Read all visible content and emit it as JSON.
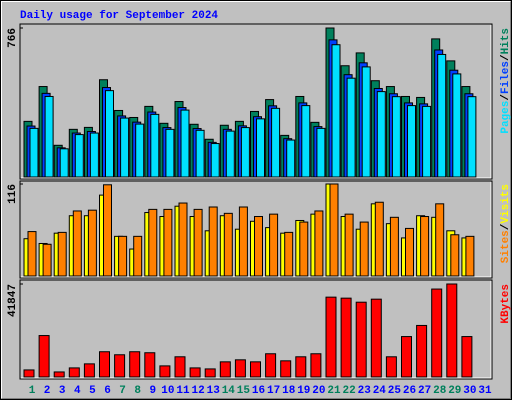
{
  "chart_data": [
    {
      "type": "bar",
      "title": "Daily usage for September 2024",
      "title_color": "#0000ff",
      "ylim": [
        0,
        766
      ],
      "yticks": [
        766
      ],
      "legend_separator": "/",
      "series": [
        {
          "name": "Hits",
          "color": "#00805c",
          "values": [
            286,
            465,
            163,
            245,
            255,
            500,
            342,
            306,
            363,
            276,
            388,
            271,
            194,
            266,
            286,
            337,
            398,
            214,
            414,
            281,
            766,
            572,
            638,
            495,
            465,
            414,
            409,
            710,
            597,
            465,
            null
          ]
        },
        {
          "name": "Files",
          "color": "#0040ff",
          "values": [
            262,
            430,
            150,
            226,
            234,
            460,
            314,
            282,
            334,
            254,
            357,
            249,
            178,
            245,
            263,
            310,
            366,
            197,
            381,
            259,
            705,
            526,
            587,
            455,
            428,
            381,
            376,
            653,
            549,
            428,
            null
          ]
        },
        {
          "name": "Pages",
          "color": "#00e0ff",
          "values": [
            250,
            414,
            145,
            218,
            226,
            444,
            303,
            272,
            322,
            245,
            344,
            240,
            172,
            236,
            254,
            299,
            353,
            190,
            367,
            250,
            680,
            508,
            566,
            439,
            413,
            367,
            363,
            630,
            530,
            413,
            null
          ]
        }
      ]
    },
    {
      "type": "bar",
      "ylim": [
        0,
        116
      ],
      "yticks": [
        116
      ],
      "legend_separator": "/",
      "series": [
        {
          "name": "Visits",
          "color": "#ffff00",
          "values": [
            47,
            41,
            54,
            76,
            76,
            102,
            50,
            34,
            80,
            75,
            88,
            75,
            57,
            76,
            59,
            69,
            61,
            54,
            70,
            78,
            116,
            75,
            59,
            91,
            66,
            48,
            76,
            74,
            57,
            48,
            null
          ]
        },
        {
          "name": "Sites",
          "color": "#ff8000",
          "values": [
            56,
            40,
            55,
            82,
            83,
            115,
            50,
            50,
            84,
            84,
            92,
            84,
            87,
            79,
            87,
            75,
            78,
            55,
            68,
            82,
            116,
            78,
            68,
            93,
            74,
            60,
            75,
            91,
            52,
            50,
            null
          ]
        }
      ]
    },
    {
      "type": "bar",
      "ylim": [
        0,
        41847
      ],
      "yticks": [
        41847
      ],
      "legend_separator": "/",
      "series": [
        {
          "name": "KBytes",
          "color": "#ff0000",
          "values": [
            3184,
            18650,
            2274,
            4094,
            5913,
            11371,
            10007,
            11371,
            10917,
            5003,
            9097,
            4094,
            3639,
            6823,
            7733,
            6823,
            10462,
            7278,
            9097,
            10462,
            35934,
            35479,
            33660,
            35024,
            9097,
            18194,
            23198,
            39573,
            41847,
            18194,
            null
          ]
        }
      ],
      "categories": [
        "1",
        "2",
        "3",
        "4",
        "5",
        "6",
        "7",
        "8",
        "9",
        "10",
        "11",
        "12",
        "13",
        "14",
        "15",
        "16",
        "17",
        "18",
        "19",
        "20",
        "21",
        "22",
        "23",
        "24",
        "25",
        "26",
        "27",
        "28",
        "29",
        "30",
        "31"
      ],
      "category_colors": [
        "#00805c",
        "#0000ff",
        "#0000ff",
        "#0000ff",
        "#0000ff",
        "#0000ff",
        "#00805c",
        "#00805c",
        "#0000ff",
        "#0000ff",
        "#0000ff",
        "#0000ff",
        "#0000ff",
        "#00805c",
        "#00805c",
        "#0000ff",
        "#0000ff",
        "#0000ff",
        "#0000ff",
        "#0000ff",
        "#00805c",
        "#00805c",
        "#0000ff",
        "#0000ff",
        "#0000ff",
        "#0000ff",
        "#0000ff",
        "#00805c",
        "#00805c",
        "#0000ff",
        "#0000ff"
      ]
    }
  ]
}
